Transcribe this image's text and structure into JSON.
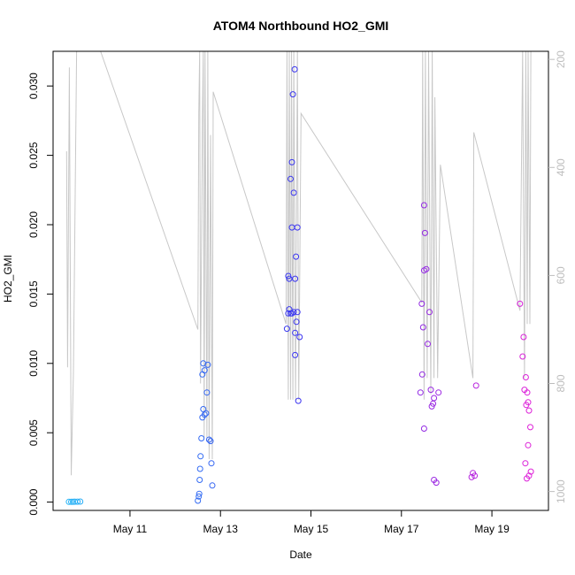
{
  "chart_data": {
    "type": "scatter",
    "title": "ATOM4 Northbound HO2_GMI",
    "xlabel": "Date",
    "ylabel": "HO2_GMI",
    "x_ticks": [
      "May 11",
      "May 13",
      "May 15",
      "May 17",
      "May 19"
    ],
    "x_tick_days": [
      11,
      13,
      15,
      17,
      19
    ],
    "xlim": [
      9.3,
      20.25
    ],
    "y_ticks": [
      "0.000",
      "0.005",
      "0.010",
      "0.015",
      "0.020",
      "0.025",
      "0.030"
    ],
    "y_tick_values": [
      0,
      0.005,
      0.01,
      0.015,
      0.02,
      0.025,
      0.03
    ],
    "ylim": [
      -0.0006,
      0.0325
    ],
    "y2_ticks": [
      "200",
      "400",
      "600",
      "800",
      "1000"
    ],
    "y2_tick_values": [
      200,
      400,
      600,
      800,
      1000
    ],
    "y2lim": [
      1035,
      185
    ],
    "grid": false,
    "colors": {
      "points_start": "#29b6f6",
      "points_mid": "#3b33f0",
      "points_end": "#e020d8",
      "pressure_line": "#c8c8c8",
      "axis": "#000000",
      "right_axis": "#bdbdbd"
    },
    "series": [
      {
        "points": [
          [
            9.65,
            2e-05
          ],
          [
            9.7,
            2e-05
          ],
          [
            9.74,
            2e-05
          ],
          [
            9.78,
            3e-05
          ],
          [
            9.84,
            3e-05
          ],
          [
            9.9,
            4e-05
          ],
          [
            12.5,
            0.0001
          ],
          [
            12.52,
            0.0004
          ],
          [
            12.53,
            0.0006
          ],
          [
            12.54,
            0.0016
          ],
          [
            12.55,
            0.0024
          ],
          [
            12.56,
            0.0033
          ],
          [
            12.58,
            0.0046
          ],
          [
            12.6,
            0.0061
          ],
          [
            12.62,
            0.0067
          ],
          [
            12.65,
            0.0063
          ],
          [
            12.68,
            0.0064
          ],
          [
            12.75,
            0.0045
          ],
          [
            12.78,
            0.0044
          ],
          [
            12.8,
            0.0028
          ],
          [
            12.82,
            0.0012
          ],
          [
            12.7,
            0.0079
          ],
          [
            12.6,
            0.0092
          ],
          [
            12.65,
            0.0095
          ],
          [
            12.62,
            0.01
          ],
          [
            12.72,
            0.0099
          ],
          [
            14.47,
            0.0125
          ],
          [
            14.5,
            0.0136
          ],
          [
            14.52,
            0.0139
          ],
          [
            14.5,
            0.0163
          ],
          [
            14.52,
            0.0161
          ],
          [
            14.55,
            0.0136
          ],
          [
            14.58,
            0.0136
          ],
          [
            14.62,
            0.0137
          ],
          [
            14.65,
            0.0122
          ],
          [
            14.68,
            0.013
          ],
          [
            14.7,
            0.0137
          ],
          [
            14.65,
            0.0106
          ],
          [
            14.75,
            0.0119
          ],
          [
            14.72,
            0.0073
          ],
          [
            14.65,
            0.0161
          ],
          [
            14.67,
            0.0177
          ],
          [
            14.7,
            0.0198
          ],
          [
            14.58,
            0.0198
          ],
          [
            14.62,
            0.0223
          ],
          [
            14.55,
            0.0233
          ],
          [
            14.58,
            0.0245
          ],
          [
            14.6,
            0.0294
          ],
          [
            14.64,
            0.0312
          ],
          [
            17.42,
            0.0079
          ],
          [
            17.46,
            0.0092
          ],
          [
            17.48,
            0.0126
          ],
          [
            17.45,
            0.0143
          ],
          [
            17.5,
            0.0167
          ],
          [
            17.55,
            0.0168
          ],
          [
            17.52,
            0.0194
          ],
          [
            17.5,
            0.0214
          ],
          [
            17.5,
            0.0053
          ],
          [
            17.58,
            0.0114
          ],
          [
            17.62,
            0.0137
          ],
          [
            17.65,
            0.0081
          ],
          [
            17.67,
            0.0069
          ],
          [
            17.7,
            0.0071
          ],
          [
            17.72,
            0.0075
          ],
          [
            17.82,
            0.0079
          ],
          [
            17.72,
            0.0016
          ],
          [
            17.77,
            0.0014
          ],
          [
            18.55,
            0.0018
          ],
          [
            18.58,
            0.0021
          ],
          [
            18.62,
            0.0019
          ],
          [
            18.65,
            0.0084
          ],
          [
            19.62,
            0.0143
          ],
          [
            19.68,
            0.0105
          ],
          [
            19.7,
            0.0119
          ],
          [
            19.72,
            0.0081
          ],
          [
            19.75,
            0.009
          ],
          [
            19.76,
            0.007
          ],
          [
            19.78,
            0.0079
          ],
          [
            19.8,
            0.0072
          ],
          [
            19.82,
            0.0066
          ],
          [
            19.85,
            0.0054
          ],
          [
            19.8,
            0.0041
          ],
          [
            19.74,
            0.0028
          ],
          [
            19.77,
            0.0017
          ],
          [
            19.82,
            0.0019
          ],
          [
            19.86,
            0.0022
          ]
        ]
      }
    ],
    "pressure_line": [
      [
        9.6,
        370
      ],
      [
        9.62,
        770
      ],
      [
        9.66,
        215
      ],
      [
        9.7,
        970
      ],
      [
        9.75,
        780
      ],
      [
        9.82,
        185
      ],
      [
        9.9,
        185
      ],
      [
        10.35,
        185
      ],
      [
        12.5,
        700
      ],
      [
        12.52,
        300
      ],
      [
        12.54,
        185
      ],
      [
        12.56,
        800
      ],
      [
        12.6,
        310
      ],
      [
        12.62,
        185
      ],
      [
        12.64,
        900
      ],
      [
        12.66,
        185
      ],
      [
        12.7,
        900
      ],
      [
        12.72,
        185
      ],
      [
        12.75,
        940
      ],
      [
        12.78,
        340
      ],
      [
        12.82,
        940
      ],
      [
        12.84,
        260
      ],
      [
        14.45,
        690
      ],
      [
        14.47,
        185
      ],
      [
        14.5,
        830
      ],
      [
        14.52,
        185
      ],
      [
        14.55,
        830
      ],
      [
        14.57,
        185
      ],
      [
        14.6,
        830
      ],
      [
        14.62,
        185
      ],
      [
        14.66,
        830
      ],
      [
        14.7,
        185
      ],
      [
        14.73,
        830
      ],
      [
        14.78,
        300
      ],
      [
        17.45,
        650
      ],
      [
        17.47,
        185
      ],
      [
        17.5,
        830
      ],
      [
        17.53,
        185
      ],
      [
        17.57,
        790
      ],
      [
        17.6,
        185
      ],
      [
        17.65,
        820
      ],
      [
        17.68,
        185
      ],
      [
        17.72,
        790
      ],
      [
        17.74,
        270
      ],
      [
        17.8,
        790
      ],
      [
        17.86,
        395
      ],
      [
        18.58,
        790
      ],
      [
        18.6,
        335
      ],
      [
        19.62,
        665
      ],
      [
        19.68,
        185
      ],
      [
        19.72,
        790
      ],
      [
        19.75,
        185
      ],
      [
        19.78,
        690
      ],
      [
        19.8,
        185
      ],
      [
        19.84,
        690
      ],
      [
        19.86,
        185
      ]
    ]
  }
}
